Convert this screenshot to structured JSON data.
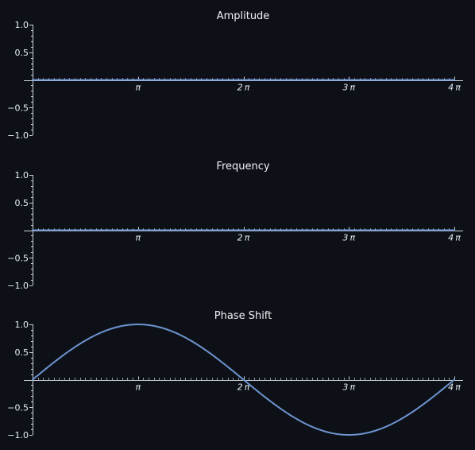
{
  "chart_data": [
    {
      "type": "line",
      "title": "Amplitude",
      "x_range": [
        0,
        12.566
      ],
      "ylim": [
        -1,
        1
      ],
      "yticks": [
        1.0,
        0.5,
        -0.5,
        -1.0
      ],
      "ytick_labels": [
        "1.0",
        "0.5",
        "−0.5",
        "−1.0"
      ],
      "xticks": [
        3.1416,
        6.2832,
        9.4248,
        12.5664
      ],
      "xtick_labels": [
        "π",
        "2 π",
        "3 π",
        "4 π"
      ],
      "series": [
        {
          "function": "0",
          "x": [
            0,
            12.566
          ],
          "y": [
            0,
            0
          ]
        }
      ]
    },
    {
      "type": "line",
      "title": "Frequency",
      "x_range": [
        0,
        12.566
      ],
      "ylim": [
        -1,
        1
      ],
      "yticks": [
        1.0,
        0.5,
        -0.5,
        -1.0
      ],
      "ytick_labels": [
        "1.0",
        "0.5",
        "−0.5",
        "−1.0"
      ],
      "xticks": [
        3.1416,
        6.2832,
        9.4248,
        12.5664
      ],
      "xtick_labels": [
        "π",
        "2 π",
        "3 π",
        "4 π"
      ],
      "series": [
        {
          "function": "0",
          "x": [
            0,
            12.566
          ],
          "y": [
            0,
            0
          ]
        }
      ]
    },
    {
      "type": "line",
      "title": "Phase Shift",
      "x_range": [
        0,
        12.566
      ],
      "ylim": [
        -1,
        1
      ],
      "yticks": [
        1.0,
        0.5,
        -0.5,
        -1.0
      ],
      "ytick_labels": [
        "1.0",
        "0.5",
        "−0.5",
        "−1.0"
      ],
      "xticks": [
        3.1416,
        6.2832,
        9.4248,
        12.5664
      ],
      "xtick_labels": [
        "π",
        "2 π",
        "3 π",
        "4 π"
      ],
      "series": [
        {
          "function": "sin(x/2)",
          "x": [
            0,
            1.5708,
            3.1416,
            4.7124,
            6.2832,
            7.854,
            9.4248,
            10.9956,
            12.5664
          ],
          "y": [
            0,
            0.707,
            1,
            0.707,
            0,
            -0.707,
            -1,
            -0.707,
            0
          ]
        }
      ]
    }
  ],
  "colors": {
    "background": "#0d1117",
    "axes": "#c9d1d9",
    "text": "#e6edf3",
    "series": "#6d93d0"
  }
}
